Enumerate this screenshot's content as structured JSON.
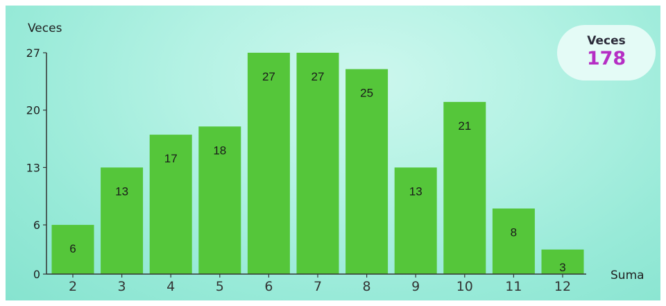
{
  "chart_data": {
    "type": "bar",
    "categories": [
      "2",
      "3",
      "4",
      "5",
      "6",
      "7",
      "8",
      "9",
      "10",
      "11",
      "12"
    ],
    "values": [
      6,
      13,
      17,
      18,
      27,
      27,
      25,
      13,
      21,
      8,
      3
    ],
    "xlabel": "Suma",
    "ylabel": "Veces",
    "ylim": [
      0,
      27
    ],
    "yticks": [
      0,
      6,
      13,
      20,
      27
    ],
    "bar_color": "#55c63a",
    "grid": false
  },
  "total": {
    "label": "Veces",
    "value": "178",
    "value_color": "#b52ec4"
  }
}
